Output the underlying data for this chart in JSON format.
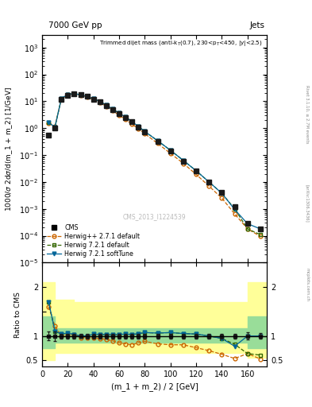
{
  "title_main": "7000 GeV pp",
  "title_right": "Jets",
  "annotation": "Trimmed dijet mass (anti-k$_{T}$(0.7), 230<p$_{T}$<450, |y|<2.5)",
  "cms_label": "CMS_2013_I1224539",
  "xlabel": "(m_1 + m_2) / 2 [GeV]",
  "ylabel_main": "1000/σ 2dσ/d(m_1 + m_2) [1/GeV]",
  "ylabel_ratio": "Ratio to CMS",
  "x_cms": [
    5,
    10,
    15,
    20,
    25,
    30,
    35,
    40,
    45,
    50,
    55,
    60,
    65,
    70,
    75,
    80,
    90,
    100,
    110,
    120,
    130,
    140,
    150,
    160,
    170
  ],
  "y_cms": [
    0.55,
    1.0,
    12.0,
    17.0,
    18.5,
    17.5,
    15.0,
    12.0,
    9.5,
    7.0,
    5.0,
    3.5,
    2.5,
    1.7,
    1.1,
    0.7,
    0.32,
    0.14,
    0.06,
    0.025,
    0.01,
    0.004,
    0.0012,
    0.00028,
    0.00018
  ],
  "y_cms_elo": [
    0.05,
    0.1,
    0.6,
    0.8,
    0.9,
    0.8,
    0.7,
    0.6,
    0.45,
    0.35,
    0.25,
    0.17,
    0.12,
    0.08,
    0.055,
    0.035,
    0.016,
    0.007,
    0.003,
    0.0012,
    0.0005,
    0.0002,
    6e-05,
    2e-05,
    1e-05
  ],
  "y_cms_ehi": [
    0.05,
    0.1,
    0.6,
    0.8,
    0.9,
    0.8,
    0.7,
    0.6,
    0.45,
    0.35,
    0.25,
    0.17,
    0.12,
    0.08,
    0.055,
    0.035,
    0.016,
    0.007,
    0.003,
    0.0012,
    0.0005,
    0.0002,
    6e-05,
    2e-05,
    1e-05
  ],
  "x_mc": [
    5,
    10,
    15,
    20,
    25,
    30,
    35,
    40,
    45,
    50,
    55,
    60,
    65,
    70,
    75,
    80,
    90,
    100,
    110,
    120,
    130,
    140,
    150,
    160,
    170
  ],
  "y_hwpp": [
    1.5,
    1.2,
    12.0,
    17.5,
    19.0,
    17.0,
    14.5,
    11.5,
    9.0,
    6.5,
    4.5,
    3.0,
    2.1,
    1.4,
    0.95,
    0.62,
    0.27,
    0.115,
    0.049,
    0.019,
    0.007,
    0.0025,
    0.00065,
    0.00018,
    9.5e-05
  ],
  "y_hw721": [
    1.6,
    1.1,
    12.5,
    18.0,
    19.0,
    17.5,
    15.0,
    12.5,
    9.8,
    7.2,
    5.1,
    3.6,
    2.6,
    1.75,
    1.15,
    0.75,
    0.34,
    0.15,
    0.063,
    0.026,
    0.01,
    0.0038,
    0.001,
    0.00018,
    0.00011
  ],
  "y_hw721st": [
    1.6,
    1.1,
    12.5,
    18.0,
    19.0,
    17.5,
    15.0,
    12.5,
    9.8,
    7.2,
    5.1,
    3.6,
    2.6,
    1.75,
    1.15,
    0.75,
    0.34,
    0.15,
    0.063,
    0.026,
    0.01,
    0.0038,
    0.00095,
    0.00028,
    0.00018
  ],
  "ratio_hwpp": [
    1.6,
    1.2,
    1.0,
    1.03,
    1.03,
    0.97,
    0.97,
    0.96,
    0.95,
    0.93,
    0.9,
    0.86,
    0.84,
    0.82,
    0.86,
    0.89,
    0.84,
    0.82,
    0.82,
    0.76,
    0.7,
    0.625,
    0.54,
    0.64,
    0.53
  ],
  "ratio_hw721": [
    1.7,
    1.1,
    1.04,
    1.06,
    1.03,
    1.0,
    1.0,
    1.04,
    1.03,
    1.03,
    1.02,
    1.03,
    1.04,
    1.03,
    1.045,
    1.07,
    1.06,
    1.07,
    1.05,
    1.04,
    1.0,
    0.95,
    0.83,
    0.64,
    0.61
  ],
  "ratio_hw721st": [
    1.7,
    1.1,
    1.04,
    1.06,
    1.03,
    1.0,
    1.0,
    1.04,
    1.03,
    1.03,
    1.02,
    1.03,
    1.04,
    1.03,
    1.045,
    1.07,
    1.06,
    1.07,
    1.05,
    1.04,
    1.0,
    0.95,
    0.79,
    1.0,
    1.0
  ],
  "color_cms": "#1a1a1a",
  "color_hwpp": "#cc6600",
  "color_hw721": "#336600",
  "color_hw721st": "#006699",
  "xlim": [
    0,
    175
  ],
  "ylim_main": [
    1e-05,
    3000
  ],
  "ylim_ratio": [
    0.38,
    2.5
  ],
  "yellow_band_edges": [
    0,
    5,
    10,
    20,
    25,
    40,
    140,
    160,
    175
  ],
  "yellow_lo": [
    0.5,
    0.5,
    0.65,
    0.65,
    0.65,
    0.65,
    0.65,
    0.55,
    0.55
  ],
  "yellow_hi": [
    2.1,
    2.1,
    1.75,
    1.75,
    1.7,
    1.7,
    1.7,
    2.1,
    2.1
  ],
  "green_band_edges": [
    0,
    5,
    10,
    20,
    25,
    40,
    140,
    160,
    175
  ],
  "green_lo": [
    0.75,
    0.75,
    0.87,
    0.87,
    0.87,
    0.87,
    0.87,
    0.75,
    0.75
  ],
  "green_hi": [
    1.4,
    1.4,
    1.15,
    1.15,
    1.15,
    1.15,
    1.15,
    1.4,
    1.4
  ]
}
